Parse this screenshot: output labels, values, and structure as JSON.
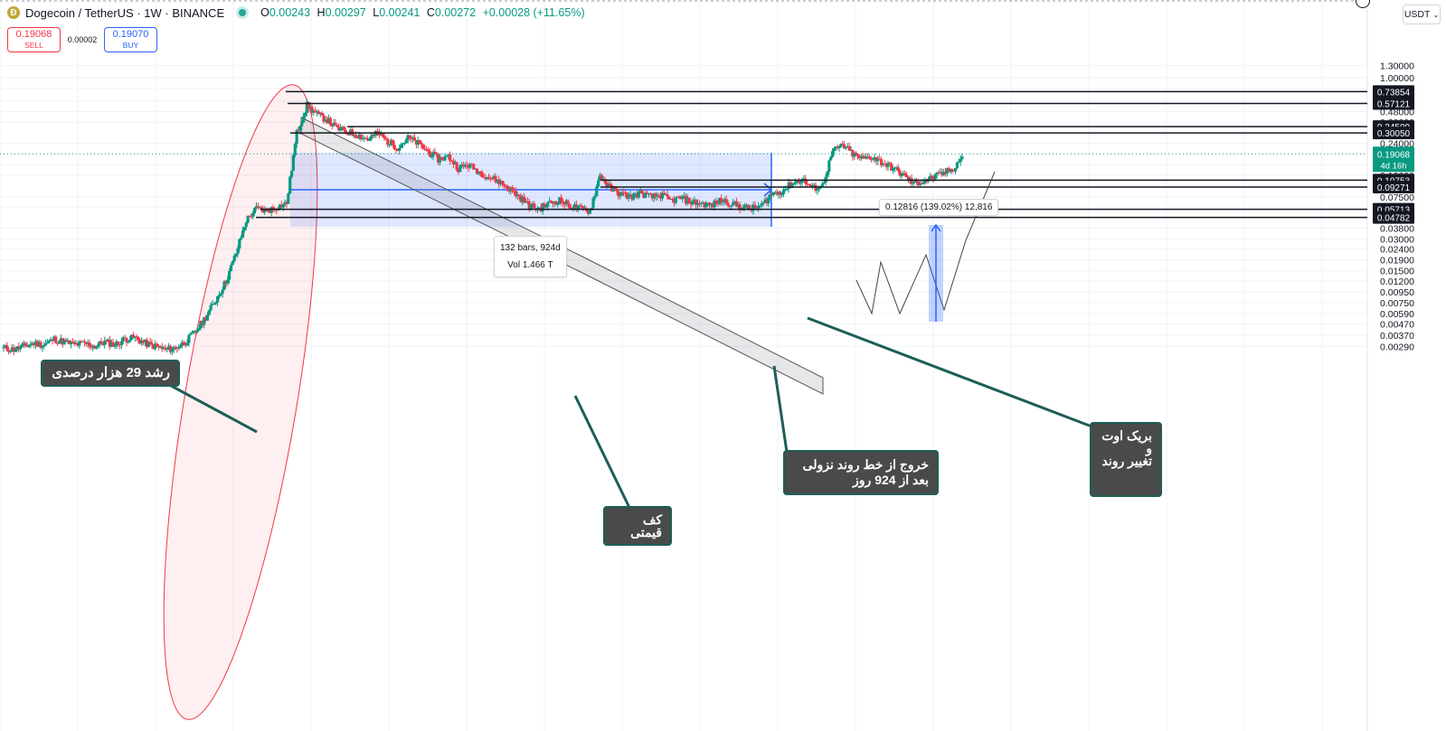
{
  "header": {
    "symbol": "Dogecoin / TetherUS · 1W · BINANCE",
    "open_label": "O",
    "open": "0.00243",
    "high_label": "H",
    "high": "0.00297",
    "low_label": "L",
    "low": "0.00241",
    "close_label": "C",
    "close": "0.00272",
    "change": "+0.00028 (+11.65%)"
  },
  "trade": {
    "sell_price": "0.19068",
    "sell_label": "SELL",
    "spread": "0.00002",
    "buy_price": "0.19070",
    "buy_label": "BUY"
  },
  "currency": {
    "label": "USDT",
    "icon": "chevron-down-icon"
  },
  "colors": {
    "up": "#089981",
    "down": "#f23645",
    "highlight_blue": "#2962ff",
    "callout_bg": "#4a4a4a",
    "callout_border": "#1e5e57"
  },
  "chart_data": {
    "type": "candlestick",
    "title": "Dogecoin / TetherUS · 1W · BINANCE",
    "scale": "log",
    "ylim": [
      0.00255,
      1.4
    ],
    "y_ticks": [
      "1.30000",
      "1.00000",
      "0.80000",
      "0.60000",
      "0.48000",
      "0.38000",
      "0.24000",
      "0.15000",
      "0.12000",
      "0.07500",
      "0.06000",
      "0.03800",
      "0.03000",
      "0.02400",
      "0.01900",
      "0.01500",
      "0.01200",
      "0.00950",
      "0.00750",
      "0.00590",
      "0.00470",
      "0.00370",
      "0.00290"
    ],
    "current_price": {
      "value": "0.19068",
      "countdown": "4d 16h"
    },
    "level_lines": [
      "0.73854",
      "0.57121",
      "0.34509",
      "0.30050",
      "0.10753",
      "0.09271",
      "0.05713",
      "0.04782"
    ],
    "measure_label": {
      "bars": "132 bars, 924d",
      "vol": "Vol 1.466 T"
    },
    "projection_label": "0.12816 (139.02%) 12,816",
    "candle_anchors": [
      0.0028,
      0.0027,
      0.0029,
      0.0031,
      0.003,
      0.0034,
      0.0032,
      0.003,
      0.0031,
      0.0029,
      0.0032,
      0.003,
      0.0034,
      0.0035,
      0.0031,
      0.0029,
      0.0027,
      0.0028,
      0.0032,
      0.004,
      0.0055,
      0.008,
      0.012,
      0.022,
      0.045,
      0.058,
      0.055,
      0.06,
      0.065,
      0.3,
      0.55,
      0.45,
      0.4,
      0.33,
      0.31,
      0.29,
      0.26,
      0.3,
      0.25,
      0.22,
      0.27,
      0.24,
      0.2,
      0.17,
      0.18,
      0.14,
      0.15,
      0.13,
      0.115,
      0.105,
      0.09,
      0.075,
      0.062,
      0.058,
      0.065,
      0.07,
      0.062,
      0.058,
      0.055,
      0.12,
      0.09,
      0.08,
      0.075,
      0.082,
      0.074,
      0.078,
      0.069,
      0.073,
      0.067,
      0.065,
      0.062,
      0.07,
      0.065,
      0.06,
      0.058,
      0.062,
      0.08,
      0.085,
      0.1,
      0.11,
      0.09,
      0.095,
      0.2,
      0.23,
      0.19,
      0.17,
      0.18,
      0.155,
      0.14,
      0.12,
      0.1,
      0.105,
      0.115,
      0.125,
      0.14,
      0.19
    ]
  },
  "annotations": {
    "growth": "رشد 29 هزار درصدی",
    "floor": "کف قیمتی",
    "exit": "خروج  از خط روند نزولی\nبعد از 924 روز",
    "breakout": "بریک اوت\nو\nتغییر روند"
  }
}
